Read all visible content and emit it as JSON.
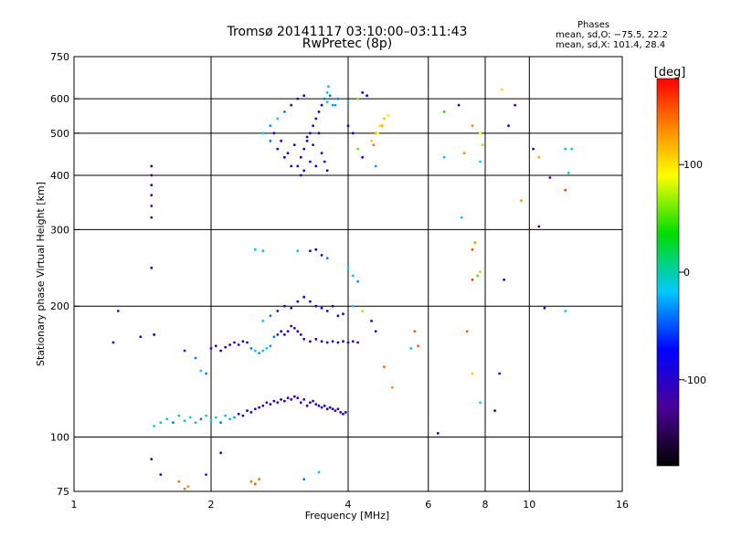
{
  "header": {
    "title_line1": "Tromsø 20141117 03:10:00–03:11:43",
    "title_line2": "RwPretec (8p)"
  },
  "phases_box": {
    "heading": "Phases",
    "line_o": "mean, sd,O: −75.5, 22.2",
    "line_x": "mean, sd,X: 101.4, 28.4"
  },
  "chart_data": {
    "type": "scatter",
    "title": "Tromsø 20141117 03:10:00–03:11:43",
    "subtitle": "RwPretec (8p)",
    "xlabel": "Frequency [MHz]",
    "ylabel": "Stationary phase Virtual Height [km]",
    "xscale": "log2",
    "yscale": "log",
    "xlim": [
      1,
      16
    ],
    "ylim": [
      75,
      750
    ],
    "xticks": [
      1,
      2,
      4,
      6,
      8,
      10,
      16
    ],
    "xtick_labels": [
      "1",
      "2",
      "4",
      "6",
      "8",
      "10",
      "16"
    ],
    "x_gridlines": [
      2,
      4,
      6,
      8,
      10
    ],
    "yticks": [
      75,
      100,
      200,
      300,
      400,
      500,
      600,
      750
    ],
    "ytick_labels": [
      "75",
      "100",
      "200",
      "300",
      "400",
      "500",
      "600",
      "750"
    ],
    "y_gridlines": [
      100,
      200,
      300,
      400,
      500,
      600
    ],
    "colorbar": {
      "label": "[deg]",
      "range": [
        -180,
        180
      ],
      "ticks": [
        100,
        0,
        -100
      ],
      "tick_labels": [
        "100",
        "0",
        "-100"
      ]
    },
    "points": [
      [
        1.75,
        76,
        140
      ],
      [
        1.78,
        77,
        130
      ],
      [
        1.7,
        79,
        140
      ],
      [
        2.45,
        79,
        140
      ],
      [
        2.5,
        78,
        150
      ],
      [
        2.55,
        80,
        140
      ],
      [
        1.55,
        82,
        -110
      ],
      [
        1.48,
        89,
        -100
      ],
      [
        1.95,
        82,
        -80
      ],
      [
        2.1,
        92,
        -100
      ],
      [
        3.2,
        80,
        -60
      ],
      [
        3.45,
        83,
        -40
      ],
      [
        1.5,
        106,
        -40
      ],
      [
        1.55,
        108,
        -20
      ],
      [
        1.6,
        110,
        -40
      ],
      [
        1.65,
        108,
        -60
      ],
      [
        1.7,
        112,
        -30
      ],
      [
        1.75,
        109,
        -20
      ],
      [
        1.8,
        111,
        -30
      ],
      [
        1.85,
        108,
        -40
      ],
      [
        1.9,
        110,
        -60
      ],
      [
        1.95,
        112,
        -30
      ],
      [
        2.0,
        109,
        -20
      ],
      [
        2.05,
        111,
        -40
      ],
      [
        2.1,
        108,
        -60
      ],
      [
        2.15,
        112,
        -30
      ],
      [
        2.2,
        110,
        -20
      ],
      [
        2.25,
        111,
        -50
      ],
      [
        2.3,
        113,
        -100
      ],
      [
        2.35,
        112,
        -110
      ],
      [
        2.4,
        115,
        -100
      ],
      [
        2.45,
        114,
        -90
      ],
      [
        2.5,
        116,
        -110
      ],
      [
        2.55,
        117,
        -100
      ],
      [
        2.6,
        118,
        -120
      ],
      [
        2.65,
        120,
        -110
      ],
      [
        2.7,
        119,
        -100
      ],
      [
        2.75,
        121,
        -90
      ],
      [
        2.8,
        120,
        -110
      ],
      [
        2.85,
        122,
        -120
      ],
      [
        2.9,
        121,
        -100
      ],
      [
        2.95,
        123,
        -130
      ],
      [
        3.0,
        122,
        -120
      ],
      [
        3.05,
        124,
        -110
      ],
      [
        3.1,
        123,
        -100
      ],
      [
        3.15,
        120,
        -120
      ],
      [
        3.2,
        122,
        -110
      ],
      [
        3.25,
        118,
        -100
      ],
      [
        3.3,
        120,
        -110
      ],
      [
        3.35,
        121,
        -120
      ],
      [
        3.4,
        119,
        -100
      ],
      [
        3.45,
        118,
        -110
      ],
      [
        3.5,
        117,
        -120
      ],
      [
        3.55,
        118,
        -100
      ],
      [
        3.6,
        116,
        -110
      ],
      [
        3.65,
        117,
        -100
      ],
      [
        3.7,
        116,
        -110
      ],
      [
        3.75,
        115,
        -120
      ],
      [
        3.8,
        116,
        -100
      ],
      [
        3.85,
        114,
        -110
      ],
      [
        3.9,
        113,
        -100
      ],
      [
        3.95,
        114,
        -90
      ],
      [
        1.4,
        170,
        -110
      ],
      [
        1.5,
        172,
        -100
      ],
      [
        1.75,
        158,
        -80
      ],
      [
        1.85,
        152,
        -60
      ],
      [
        1.9,
        142,
        -40
      ],
      [
        1.95,
        140,
        -60
      ],
      [
        2.0,
        160,
        -100
      ],
      [
        2.05,
        162,
        -110
      ],
      [
        2.1,
        158,
        -100
      ],
      [
        2.15,
        161,
        -110
      ],
      [
        2.2,
        163,
        -100
      ],
      [
        2.25,
        165,
        -110
      ],
      [
        2.3,
        163,
        -100
      ],
      [
        2.35,
        166,
        -120
      ],
      [
        2.4,
        165,
        -110
      ],
      [
        2.45,
        160,
        -60
      ],
      [
        2.5,
        158,
        -40
      ],
      [
        2.55,
        156,
        -50
      ],
      [
        2.6,
        158,
        -30
      ],
      [
        2.65,
        160,
        -40
      ],
      [
        2.7,
        162,
        -50
      ],
      [
        2.75,
        170,
        -60
      ],
      [
        2.8,
        172,
        -80
      ],
      [
        2.85,
        175,
        -90
      ],
      [
        2.9,
        172,
        -100
      ],
      [
        2.95,
        175,
        -110
      ],
      [
        3.0,
        180,
        -110
      ],
      [
        3.05,
        178,
        -120
      ],
      [
        3.1,
        175,
        -100
      ],
      [
        3.15,
        172,
        -110
      ],
      [
        3.2,
        168,
        -100
      ],
      [
        3.3,
        166,
        -110
      ],
      [
        3.4,
        168,
        -100
      ],
      [
        3.5,
        166,
        -110
      ],
      [
        3.6,
        165,
        -100
      ],
      [
        3.7,
        166,
        -110
      ],
      [
        3.8,
        165,
        -100
      ],
      [
        3.9,
        166,
        -110
      ],
      [
        4.0,
        165,
        -100
      ],
      [
        4.1,
        166,
        -110
      ],
      [
        4.2,
        165,
        -100
      ],
      [
        2.6,
        185,
        -40
      ],
      [
        2.7,
        190,
        -60
      ],
      [
        2.8,
        195,
        -110
      ],
      [
        2.9,
        200,
        -130
      ],
      [
        3.0,
        198,
        -120
      ],
      [
        3.1,
        205,
        -110
      ],
      [
        3.2,
        210,
        -100
      ],
      [
        3.3,
        205,
        -110
      ],
      [
        3.4,
        200,
        -100
      ],
      [
        3.5,
        198,
        -90
      ],
      [
        3.6,
        195,
        -100
      ],
      [
        3.7,
        200,
        -110
      ],
      [
        3.8,
        190,
        -100
      ],
      [
        3.9,
        192,
        -110
      ],
      [
        4.1,
        200,
        -40
      ],
      [
        4.3,
        195,
        60
      ],
      [
        4.5,
        185,
        -110
      ],
      [
        4.6,
        175,
        -100
      ],
      [
        2.5,
        270,
        -40
      ],
      [
        2.6,
        268,
        -30
      ],
      [
        3.1,
        268,
        -40
      ],
      [
        3.3,
        268,
        -110
      ],
      [
        3.4,
        270,
        -100
      ],
      [
        3.5,
        262,
        -110
      ],
      [
        3.6,
        258,
        -60
      ],
      [
        4.0,
        245,
        -40
      ],
      [
        4.1,
        235,
        -40
      ],
      [
        4.2,
        228,
        -50
      ],
      [
        3.1,
        420,
        -100
      ],
      [
        3.15,
        440,
        -110
      ],
      [
        3.2,
        460,
        -100
      ],
      [
        3.25,
        480,
        -90
      ],
      [
        3.3,
        500,
        -100
      ],
      [
        3.35,
        520,
        -110
      ],
      [
        3.4,
        540,
        -100
      ],
      [
        3.45,
        560,
        -90
      ],
      [
        3.5,
        580,
        -100
      ],
      [
        3.55,
        600,
        -60
      ],
      [
        3.6,
        620,
        -40
      ],
      [
        3.62,
        640,
        -30
      ],
      [
        3.65,
        610,
        -60
      ],
      [
        3.7,
        580,
        -50
      ],
      [
        3.5,
        450,
        -110
      ],
      [
        3.55,
        430,
        -100
      ],
      [
        3.6,
        410,
        -110
      ],
      [
        3.4,
        420,
        -100
      ],
      [
        3.3,
        430,
        -110
      ],
      [
        3.2,
        410,
        -100
      ],
      [
        3.15,
        400,
        -110
      ],
      [
        3.0,
        420,
        -100
      ],
      [
        2.9,
        440,
        -90
      ],
      [
        2.8,
        460,
        -100
      ],
      [
        2.7,
        480,
        -60
      ],
      [
        2.6,
        500,
        -40
      ],
      [
        2.7,
        520,
        -50
      ],
      [
        2.8,
        540,
        -40
      ],
      [
        2.9,
        560,
        -60
      ],
      [
        3.0,
        580,
        -100
      ],
      [
        3.1,
        600,
        -110
      ],
      [
        3.2,
        610,
        -120
      ],
      [
        2.75,
        500,
        -100
      ],
      [
        2.85,
        480,
        -110
      ],
      [
        2.95,
        450,
        -100
      ],
      [
        3.05,
        470,
        -90
      ],
      [
        3.25,
        490,
        -100
      ],
      [
        3.35,
        470,
        -110
      ],
      [
        3.45,
        500,
        -100
      ],
      [
        4.5,
        480,
        110
      ],
      [
        4.6,
        500,
        120
      ],
      [
        4.7,
        520,
        100
      ],
      [
        4.8,
        540,
        110
      ],
      [
        4.9,
        550,
        100
      ],
      [
        4.55,
        470,
        140
      ],
      [
        4.75,
        520,
        120
      ],
      [
        4.65,
        500,
        90
      ],
      [
        1.48,
        420,
        -140
      ],
      [
        1.48,
        400,
        -140
      ],
      [
        1.48,
        380,
        -140
      ],
      [
        1.48,
        360,
        -140
      ],
      [
        1.48,
        340,
        -140
      ],
      [
        1.48,
        320,
        -140
      ],
      [
        1.48,
        245,
        -110
      ],
      [
        1.25,
        195,
        -130
      ],
      [
        1.22,
        165,
        -110
      ],
      [
        1.5,
        172,
        -120
      ],
      [
        5.6,
        175,
        150
      ],
      [
        5.7,
        162,
        150
      ],
      [
        5.5,
        160,
        -40
      ],
      [
        4.8,
        145,
        140
      ],
      [
        5.0,
        130,
        130
      ],
      [
        6.3,
        102,
        -110
      ],
      [
        6.5,
        440,
        -40
      ],
      [
        6.5,
        560,
        30
      ],
      [
        7.0,
        580,
        -100
      ],
      [
        7.2,
        450,
        130
      ],
      [
        7.5,
        520,
        130
      ],
      [
        7.8,
        500,
        90
      ],
      [
        7.9,
        470,
        60
      ],
      [
        7.8,
        430,
        -40
      ],
      [
        7.6,
        280,
        130
      ],
      [
        7.5,
        270,
        150
      ],
      [
        7.5,
        230,
        160
      ],
      [
        7.7,
        235,
        40
      ],
      [
        7.8,
        240,
        110
      ],
      [
        7.1,
        320,
        -30
      ],
      [
        7.3,
        175,
        150
      ],
      [
        7.5,
        140,
        110
      ],
      [
        7.8,
        120,
        -40
      ],
      [
        8.6,
        140,
        -100
      ],
      [
        8.4,
        115,
        -100
      ],
      [
        8.8,
        230,
        -110
      ],
      [
        8.7,
        630,
        100
      ],
      [
        9.0,
        520,
        -100
      ],
      [
        9.3,
        580,
        -110
      ],
      [
        9.6,
        350,
        130
      ],
      [
        10.2,
        460,
        -110
      ],
      [
        10.5,
        440,
        120
      ],
      [
        11.1,
        395,
        -130
      ],
      [
        10.5,
        305,
        -140
      ],
      [
        12.0,
        370,
        160
      ],
      [
        12.0,
        460,
        -20
      ],
      [
        12.4,
        460,
        -30
      ],
      [
        12.2,
        405,
        -30
      ],
      [
        12.0,
        195,
        -40
      ],
      [
        10.8,
        198,
        -100
      ],
      [
        4.3,
        620,
        -90
      ],
      [
        4.4,
        610,
        -100
      ],
      [
        4.2,
        600,
        50
      ],
      [
        4.0,
        590,
        -40
      ],
      [
        3.8,
        600,
        -60
      ],
      [
        3.75,
        580,
        -50
      ],
      [
        3.6,
        590,
        -40
      ],
      [
        4.0,
        520,
        -110
      ],
      [
        4.1,
        500,
        -100
      ],
      [
        4.3,
        440,
        -100
      ],
      [
        4.2,
        460,
        50
      ],
      [
        4.6,
        420,
        -50
      ]
    ]
  }
}
